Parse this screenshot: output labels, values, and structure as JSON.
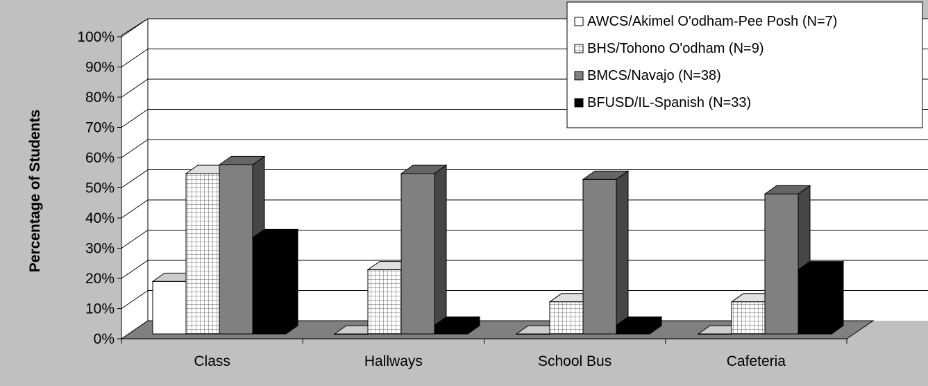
{
  "chart_data": {
    "type": "bar",
    "title": "",
    "xlabel": "",
    "ylabel": "Percentage of Students",
    "ylim": [
      0,
      100
    ],
    "yticks": [
      "0%",
      "10%",
      "20%",
      "30%",
      "40%",
      "50%",
      "60%",
      "70%",
      "80%",
      "90%",
      "100%"
    ],
    "categories": [
      "Class",
      "Hallways",
      "School Bus",
      "Cafeteria"
    ],
    "series": [
      {
        "name": "AWCS/Akimel O'odham-Pee Posh (N=7)",
        "values": [
          18,
          0,
          0,
          0
        ],
        "color": "#ffffff",
        "pattern": "none"
      },
      {
        "name": "BHS/Tohono O'odham (N=9)",
        "values": [
          55,
          22,
          11,
          11
        ],
        "color": "#ffffff",
        "pattern": "grid"
      },
      {
        "name": "BMCS/Navajo (N=38)",
        "values": [
          58,
          55,
          53,
          48
        ],
        "color": "#808080",
        "pattern": "none"
      },
      {
        "name": "BFUSD/IL-Spanish (N=33)",
        "values": [
          33,
          3,
          3,
          22
        ],
        "color": "#000000",
        "pattern": "none"
      }
    ],
    "legend_position": "top-right",
    "grid": true,
    "background_color": "#c0c0c0",
    "floor_color": "#808080"
  }
}
